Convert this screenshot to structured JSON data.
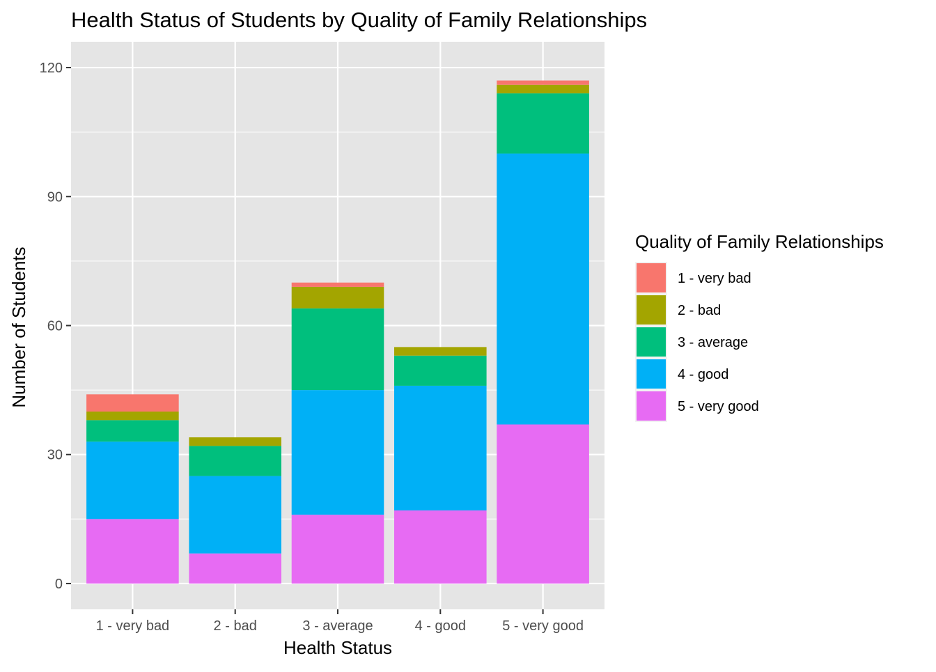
{
  "chart_data": {
    "type": "bar",
    "stacked": true,
    "title": "Health Status of Students by Quality of Family Relationships",
    "xlabel": "Health Status",
    "ylabel": "Number of Students",
    "categories": [
      "1 - very bad",
      "2 - bad",
      "3 - average",
      "4 - good",
      "5 - very good"
    ],
    "ylim": [
      -6,
      126
    ],
    "yticks": [
      0,
      30,
      60,
      90,
      120
    ],
    "ytick_labels": [
      "0",
      "30",
      "60",
      "90",
      "120"
    ],
    "grid": true,
    "panel_background": "#e5e5e5",
    "legend": {
      "title": "Quality of Family Relationships",
      "position": "right"
    },
    "series": [
      {
        "name": "1 - very bad",
        "color": "#F8766D",
        "values": [
          4,
          0,
          1,
          0,
          1
        ]
      },
      {
        "name": "2 - bad",
        "color": "#A3A500",
        "values": [
          2,
          2,
          5,
          2,
          2
        ]
      },
      {
        "name": "3 - average",
        "color": "#00BF7D",
        "values": [
          5,
          7,
          19,
          7,
          14
        ]
      },
      {
        "name": "4 - good",
        "color": "#00B0F6",
        "values": [
          18,
          18,
          29,
          29,
          63
        ]
      },
      {
        "name": "5 - very good",
        "color": "#E76BF3",
        "values": [
          15,
          7,
          16,
          17,
          37
        ]
      }
    ]
  }
}
